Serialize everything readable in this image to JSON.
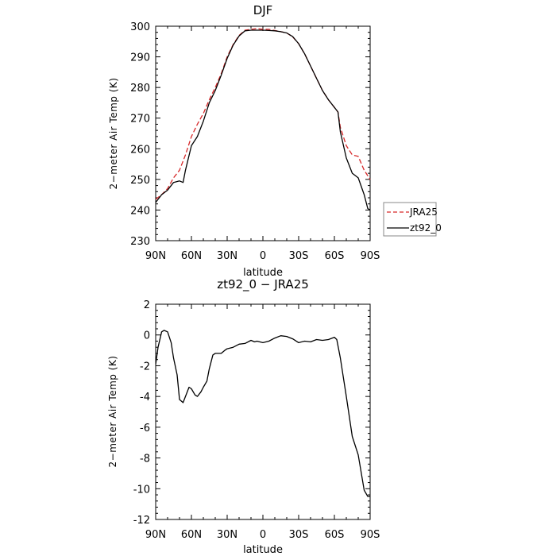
{
  "chart_data": [
    {
      "type": "line",
      "title": "DJF",
      "xlabel": "latitude",
      "ylabel": "2−meter Air Temp (K)",
      "xlim": [
        90,
        -90
      ],
      "ylim": [
        230,
        300
      ],
      "x_ticks": [
        {
          "value": 90,
          "label": "90N"
        },
        {
          "value": 60,
          "label": "60N"
        },
        {
          "value": 30,
          "label": "30N"
        },
        {
          "value": 0,
          "label": "0"
        },
        {
          "value": -30,
          "label": "30S"
        },
        {
          "value": -60,
          "label": "60S"
        },
        {
          "value": -90,
          "label": "90S"
        }
      ],
      "y_ticks": [
        230,
        240,
        250,
        260,
        270,
        280,
        290,
        300
      ],
      "legend_position": "right",
      "series": [
        {
          "name": "JRA25",
          "color": "#d62728",
          "dash": "dashed",
          "x": [
            90,
            85,
            80,
            75,
            70,
            65,
            60,
            55,
            50,
            45,
            40,
            35,
            30,
            25,
            20,
            15,
            10,
            5,
            0,
            -5,
            -10,
            -15,
            -20,
            -25,
            -30,
            -35,
            -40,
            -45,
            -50,
            -55,
            -60,
            -63,
            -65,
            -70,
            -75,
            -80,
            -85,
            -90
          ],
          "y": [
            243.5,
            245,
            247,
            250.5,
            253,
            258,
            264,
            268,
            271.5,
            276,
            280,
            284.5,
            290,
            294,
            297,
            298.7,
            299,
            299.2,
            299,
            299,
            298.6,
            298.2,
            297.8,
            296.5,
            294.3,
            291,
            287,
            283,
            279,
            276,
            273.5,
            272,
            267,
            261,
            258,
            257.5,
            253,
            250
          ]
        },
        {
          "name": "zt92_0",
          "color": "#000000",
          "dash": "solid",
          "x": [
            90,
            85,
            80,
            75,
            70,
            67,
            65,
            60,
            55,
            50,
            45,
            40,
            35,
            30,
            25,
            20,
            15,
            10,
            5,
            0,
            -5,
            -10,
            -15,
            -20,
            -25,
            -30,
            -35,
            -40,
            -45,
            -50,
            -55,
            -60,
            -63,
            -65,
            -70,
            -75,
            -80,
            -85,
            -88,
            -90
          ],
          "y": [
            242.5,
            245,
            246.5,
            249,
            249.5,
            249,
            253,
            261,
            264,
            269,
            275,
            279,
            284,
            289.5,
            293.8,
            296.8,
            298.5,
            298.7,
            298.7,
            298.7,
            298.6,
            298.5,
            298.2,
            297.8,
            296.6,
            294.3,
            291,
            287,
            283,
            279,
            276,
            273.5,
            272,
            265.5,
            257,
            252,
            250.5,
            245,
            240.5,
            240
          ]
        }
      ]
    },
    {
      "type": "line",
      "title": "zt92_0 − JRA25",
      "xlabel": "latitude",
      "ylabel": "2−meter Air Temp (K)",
      "xlim": [
        90,
        -90
      ],
      "ylim": [
        -12,
        2
      ],
      "x_ticks": [
        {
          "value": 90,
          "label": "90N"
        },
        {
          "value": 60,
          "label": "60N"
        },
        {
          "value": 30,
          "label": "30N"
        },
        {
          "value": 0,
          "label": "0"
        },
        {
          "value": -30,
          "label": "30S"
        },
        {
          "value": -60,
          "label": "60S"
        },
        {
          "value": -90,
          "label": "90S"
        }
      ],
      "y_ticks": [
        -12,
        -10,
        -8,
        -6,
        -4,
        -2,
        0,
        2
      ],
      "series": [
        {
          "name": "",
          "color": "#000000",
          "dash": "solid",
          "x": [
            90,
            88,
            85,
            83,
            80,
            77,
            75,
            72,
            70,
            67,
            65,
            62,
            60,
            57,
            55,
            52,
            50,
            47,
            45,
            42,
            40,
            37,
            35,
            32,
            30,
            25,
            20,
            15,
            10,
            7,
            5,
            0,
            -5,
            -10,
            -15,
            -20,
            -25,
            -30,
            -35,
            -40,
            -45,
            -50,
            -55,
            -60,
            -62,
            -65,
            -70,
            -75,
            -80,
            -85,
            -88,
            -90
          ],
          "y": [
            -1.9,
            -0.8,
            0.2,
            0.3,
            0.2,
            -0.5,
            -1.5,
            -2.6,
            -4.2,
            -4.4,
            -4.0,
            -3.4,
            -3.5,
            -3.9,
            -4.0,
            -3.7,
            -3.4,
            -3.0,
            -2.2,
            -1.3,
            -1.2,
            -1.2,
            -1.2,
            -1.0,
            -0.9,
            -0.8,
            -0.6,
            -0.55,
            -0.35,
            -0.45,
            -0.4,
            -0.5,
            -0.4,
            -0.2,
            -0.05,
            -0.1,
            -0.25,
            -0.5,
            -0.4,
            -0.45,
            -0.3,
            -0.35,
            -0.3,
            -0.15,
            -0.3,
            -1.5,
            -4.0,
            -6.6,
            -7.8,
            -10.1,
            -10.5,
            -10.5
          ]
        }
      ]
    }
  ]
}
